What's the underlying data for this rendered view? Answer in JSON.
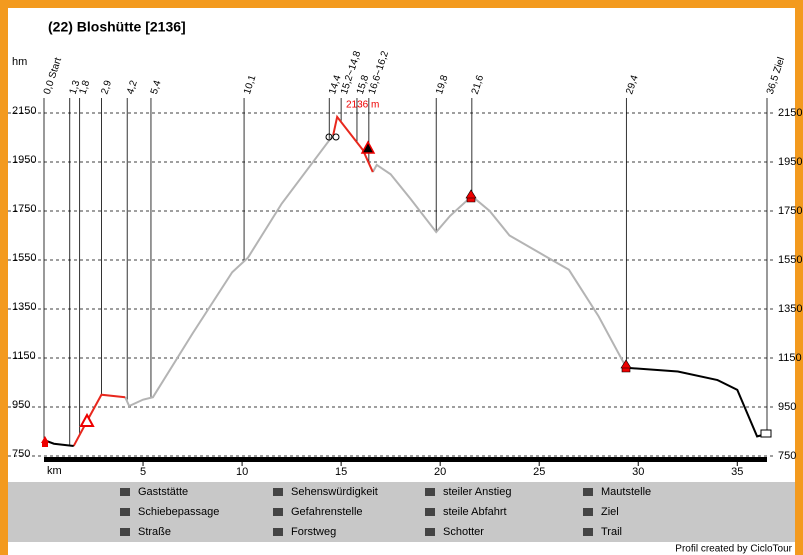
{
  "chart_data": {
    "type": "line",
    "title": "(22) Bloshütte [2136]",
    "y_label": "hm",
    "x_label": "km",
    "xlim": [
      0,
      36.5
    ],
    "ylim": [
      750,
      2150
    ],
    "xticks": [
      5,
      10,
      15,
      20,
      25,
      30,
      35
    ],
    "yticks": [
      750,
      950,
      1150,
      1350,
      1550,
      1750,
      1950,
      2150
    ],
    "grid": true,
    "series": [
      {
        "color": "#b4b4b4",
        "x": [
          4.1,
          4.3,
          5.0,
          5.5,
          7.5,
          9.5,
          10.3,
          12,
          14.6,
          null,
          16.6,
          16.8,
          17.5,
          18.5,
          19.8,
          20.5,
          21.6,
          22.5,
          23.5,
          25,
          26.5,
          28,
          29.4
        ],
        "values": [
          990,
          954,
          980,
          990,
          1250,
          1500,
          1560,
          1780,
          2060,
          null,
          1909,
          1938,
          1900,
          1800,
          1664,
          1730,
          1811,
          1750,
          1650,
          1580,
          1510,
          1320,
          1110
        ]
      },
      {
        "color": "#e8281e",
        "x": [
          1.5,
          2.2,
          2.9,
          4.1,
          null,
          14.6,
          14.8,
          16.1,
          16.6
        ],
        "values": [
          791,
          897,
          1000,
          990,
          null,
          2060,
          2134,
          1999,
          1909
        ]
      },
      {
        "color": "#000000",
        "x": [
          0,
          0.5,
          1.5,
          null,
          29.4,
          32,
          34,
          35,
          36,
          36.5
        ],
        "values": [
          815,
          800,
          791,
          null,
          1110,
          1095,
          1060,
          1020,
          830,
          840
        ]
      }
    ],
    "waypoints": [
      {
        "value": 0,
        "label": "0,0 Start"
      },
      {
        "value": 1.3,
        "label": "1,3"
      },
      {
        "value": 1.8,
        "label": "1,8"
      },
      {
        "value": 2.9,
        "label": "2,9"
      },
      {
        "value": 4.2,
        "label": "4,2"
      },
      {
        "value": 5.4,
        "label": "5,4"
      },
      {
        "value": 10.1,
        "label": "10,1"
      },
      {
        "value": 14.4,
        "label": "14,4"
      },
      {
        "value": 15.0,
        "label": "15,2~14,8"
      },
      {
        "value": 15.8,
        "label": "15,8"
      },
      {
        "value": 16.4,
        "label": "16,6~16,2"
      },
      {
        "value": 19.8,
        "label": "19,8"
      },
      {
        "value": 21.6,
        "label": "21,6"
      },
      {
        "value": 29.4,
        "label": "29,4"
      },
      {
        "value": 36.5,
        "label": "36,5 Ziel"
      }
    ],
    "peak_label": "2136 m",
    "legend": [
      "Gaststätte",
      "Schiebepassage",
      "Straße",
      "Sehenswürdigkeit",
      "Gefahrenstelle",
      "Forstweg",
      "steiler Anstieg",
      "steile Abfahrt",
      "Schotter",
      "Mautstelle",
      "Ziel",
      "Trail"
    ],
    "credit": "Profil created by CicloTour"
  }
}
